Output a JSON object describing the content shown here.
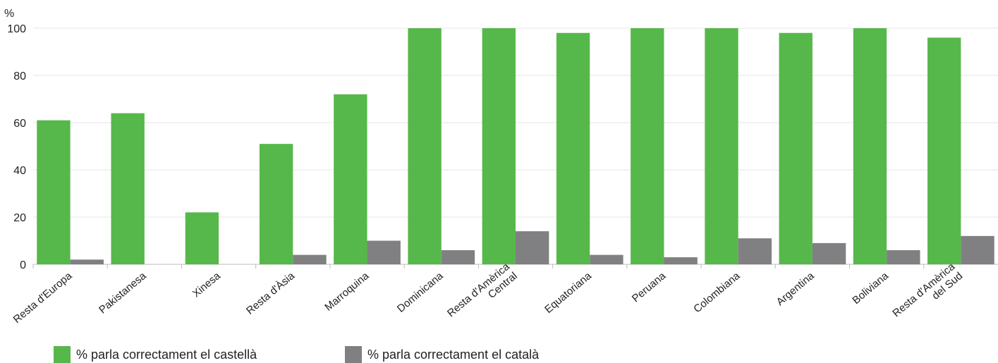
{
  "chart_data": {
    "type": "bar",
    "ylabel": "%",
    "ylim": [
      0,
      100
    ],
    "yticks": [
      0,
      20,
      40,
      60,
      80,
      100
    ],
    "grid": true,
    "categories": [
      [
        "Resta d'Europa"
      ],
      [
        "Pakistanesa"
      ],
      [
        "Xinesa"
      ],
      [
        "Resta d'Àsia"
      ],
      [
        "Marroquina"
      ],
      [
        "Dominicana"
      ],
      [
        "Resta d'Amèrica",
        "Central"
      ],
      [
        "Equatoriana"
      ],
      [
        "Peruana"
      ],
      [
        "Colombiana"
      ],
      [
        "Argentina"
      ],
      [
        "Boliviana"
      ],
      [
        "Resta d'Amèrica",
        "del Sud"
      ]
    ],
    "series": [
      {
        "name": "% parla correctament el castellà",
        "color": "#56b84a",
        "values": [
          61,
          64,
          22,
          51,
          72,
          100,
          100,
          98,
          100,
          100,
          98,
          100,
          96
        ]
      },
      {
        "name": "% parla correctament el català",
        "color": "#808083",
        "values": [
          2,
          0,
          0,
          4,
          10,
          6,
          14,
          4,
          3,
          11,
          9,
          6,
          12
        ]
      }
    ],
    "legend_position": "bottom-left"
  }
}
